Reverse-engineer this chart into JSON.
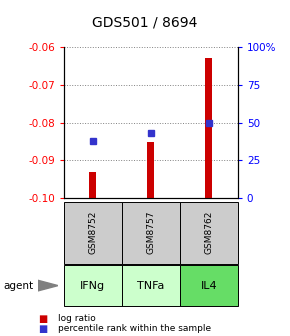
{
  "title": "GDS501 / 8694",
  "categories": [
    "GSM8752",
    "GSM8757",
    "GSM8762"
  ],
  "agents": [
    "IFNg",
    "TNFa",
    "IL4"
  ],
  "log_ratios": [
    -0.093,
    -0.085,
    -0.063
  ],
  "percentile_ranks": [
    38,
    43,
    50
  ],
  "ylim_left": [
    -0.1,
    -0.06
  ],
  "ylim_right": [
    0,
    100
  ],
  "yticks_left": [
    -0.1,
    -0.09,
    -0.08,
    -0.07,
    -0.06
  ],
  "yticks_right": [
    0,
    25,
    50,
    75,
    100
  ],
  "ytick_labels_right": [
    "0",
    "25",
    "50",
    "75",
    "100%"
  ],
  "bar_color": "#cc0000",
  "dot_color": "#3333cc",
  "agent_colors": [
    "#ccffcc",
    "#ccffcc",
    "#66dd66"
  ],
  "gsm_box_color": "#cccccc",
  "legend_red": "log ratio",
  "legend_blue": "percentile rank within the sample",
  "bar_width": 0.12
}
